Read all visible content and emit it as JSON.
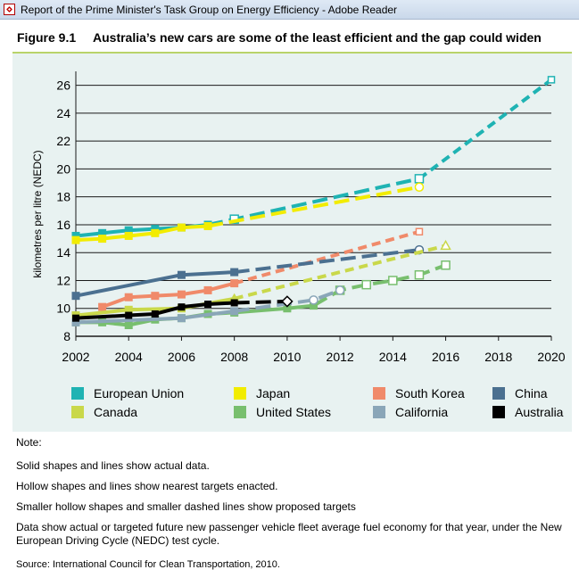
{
  "window": {
    "title": "Report of the Prime Minister's Task Group on Energy Efficiency - Adobe Reader"
  },
  "figure": {
    "number": "Figure 9.1",
    "title": "Australia’s new cars are some of the least efficient and the gap could widen"
  },
  "chart_data": {
    "type": "line",
    "ylabel": "kilometres per litre (NEDC)",
    "xlabel": "",
    "xlim": [
      2002,
      2020
    ],
    "ylim": [
      8,
      27
    ],
    "x_ticks": [
      2002,
      2004,
      2006,
      2008,
      2010,
      2012,
      2014,
      2016,
      2018,
      2020
    ],
    "y_ticks": [
      8,
      10,
      12,
      14,
      16,
      18,
      20,
      22,
      24,
      26
    ],
    "grid": true,
    "legend_position": "bottom",
    "series": [
      {
        "name": "European Union",
        "color": "#1fb3b3",
        "actual": [
          [
            2002,
            15.2
          ],
          [
            2003,
            15.4
          ],
          [
            2004,
            15.6
          ],
          [
            2005,
            15.7
          ],
          [
            2006,
            15.8
          ],
          [
            2007,
            16.0
          ]
        ],
        "enacted": [
          [
            2007,
            16.0
          ],
          [
            2008,
            16.4
          ],
          [
            2015,
            19.3
          ]
        ],
        "proposed": [
          [
            2015,
            19.3
          ],
          [
            2020,
            26.4
          ]
        ]
      },
      {
        "name": "Japan",
        "color": "#f2ec00",
        "actual": [
          [
            2002,
            14.9
          ],
          [
            2003,
            15.0
          ],
          [
            2004,
            15.2
          ],
          [
            2005,
            15.4
          ],
          [
            2006,
            15.8
          ],
          [
            2007,
            15.9
          ]
        ],
        "enacted": [
          [
            2007,
            15.9
          ],
          [
            2015,
            18.7
          ]
        ],
        "proposed": []
      },
      {
        "name": "South Korea",
        "color": "#f08a6a",
        "actual": [
          [
            2003,
            10.1
          ],
          [
            2004,
            10.8
          ],
          [
            2005,
            10.9
          ],
          [
            2006,
            11.0
          ],
          [
            2007,
            11.3
          ],
          [
            2008,
            11.8
          ]
        ],
        "enacted": [],
        "proposed": [
          [
            2008,
            11.8
          ],
          [
            2015,
            15.5
          ]
        ]
      },
      {
        "name": "China",
        "color": "#4b7090",
        "actual": [
          [
            2002,
            10.9
          ],
          [
            2006,
            12.4
          ],
          [
            2008,
            12.6
          ]
        ],
        "enacted": [
          [
            2008,
            12.6
          ],
          [
            2015,
            14.2
          ]
        ],
        "proposed": []
      },
      {
        "name": "Canada",
        "color": "#c9d84a",
        "actual": [
          [
            2002,
            9.5
          ],
          [
            2004,
            9.9
          ],
          [
            2006,
            10.0
          ],
          [
            2008,
            10.7
          ]
        ],
        "enacted": [],
        "proposed": [
          [
            2008,
            10.7
          ],
          [
            2016,
            14.5
          ]
        ]
      },
      {
        "name": "United States",
        "color": "#78bf6e",
        "actual": [
          [
            2002,
            9.0
          ],
          [
            2003,
            9.0
          ],
          [
            2004,
            8.8
          ],
          [
            2005,
            9.2
          ],
          [
            2006,
            9.3
          ],
          [
            2007,
            9.6
          ],
          [
            2008,
            9.7
          ],
          [
            2010,
            10.0
          ],
          [
            2011,
            10.2
          ]
        ],
        "enacted": [
          [
            2011,
            10.2
          ],
          [
            2012,
            11.3
          ],
          [
            2013,
            11.7
          ],
          [
            2014,
            12.0
          ],
          [
            2015,
            12.4
          ],
          [
            2016,
            13.1
          ]
        ],
        "proposed": []
      },
      {
        "name": "California",
        "color": "#8aa6b8",
        "actual": [
          [
            2002,
            9.0
          ],
          [
            2006,
            9.3
          ],
          [
            2008,
            9.8
          ]
        ],
        "enacted": [
          [
            2008,
            9.8
          ],
          [
            2011,
            10.6
          ],
          [
            2012,
            11.3
          ]
        ],
        "proposed": []
      },
      {
        "name": "Australia",
        "color": "#000000",
        "actual": [
          [
            2002,
            9.3
          ],
          [
            2004,
            9.5
          ],
          [
            2005,
            9.6
          ],
          [
            2006,
            10.1
          ],
          [
            2007,
            10.3
          ],
          [
            2008,
            10.4
          ]
        ],
        "enacted": [
          [
            2008,
            10.4
          ],
          [
            2010,
            10.5
          ]
        ],
        "proposed": []
      }
    ]
  },
  "legend": [
    {
      "label": "European Union",
      "color": "#1fb3b3"
    },
    {
      "label": "Japan",
      "color": "#f2ec00"
    },
    {
      "label": "South Korea",
      "color": "#f08a6a"
    },
    {
      "label": "China",
      "color": "#4b7090"
    },
    {
      "label": "Canada",
      "color": "#c9d84a"
    },
    {
      "label": "United States",
      "color": "#78bf6e"
    },
    {
      "label": "California",
      "color": "#8aa6b8"
    },
    {
      "label": "Australia",
      "color": "#000000"
    }
  ],
  "notes": {
    "heading": "Note:",
    "lines": [
      "Solid shapes and lines show actual data.",
      "Hollow shapes and lines show nearest targets enacted.",
      "Smaller hollow shapes and smaller dashed lines show proposed targets",
      "Data show actual or targeted future new passenger vehicle fleet average fuel economy for that year, under the New European Driving Cycle (NEDC) test cycle."
    ],
    "source": "Source: International Council for Clean Transportation, 2010."
  }
}
